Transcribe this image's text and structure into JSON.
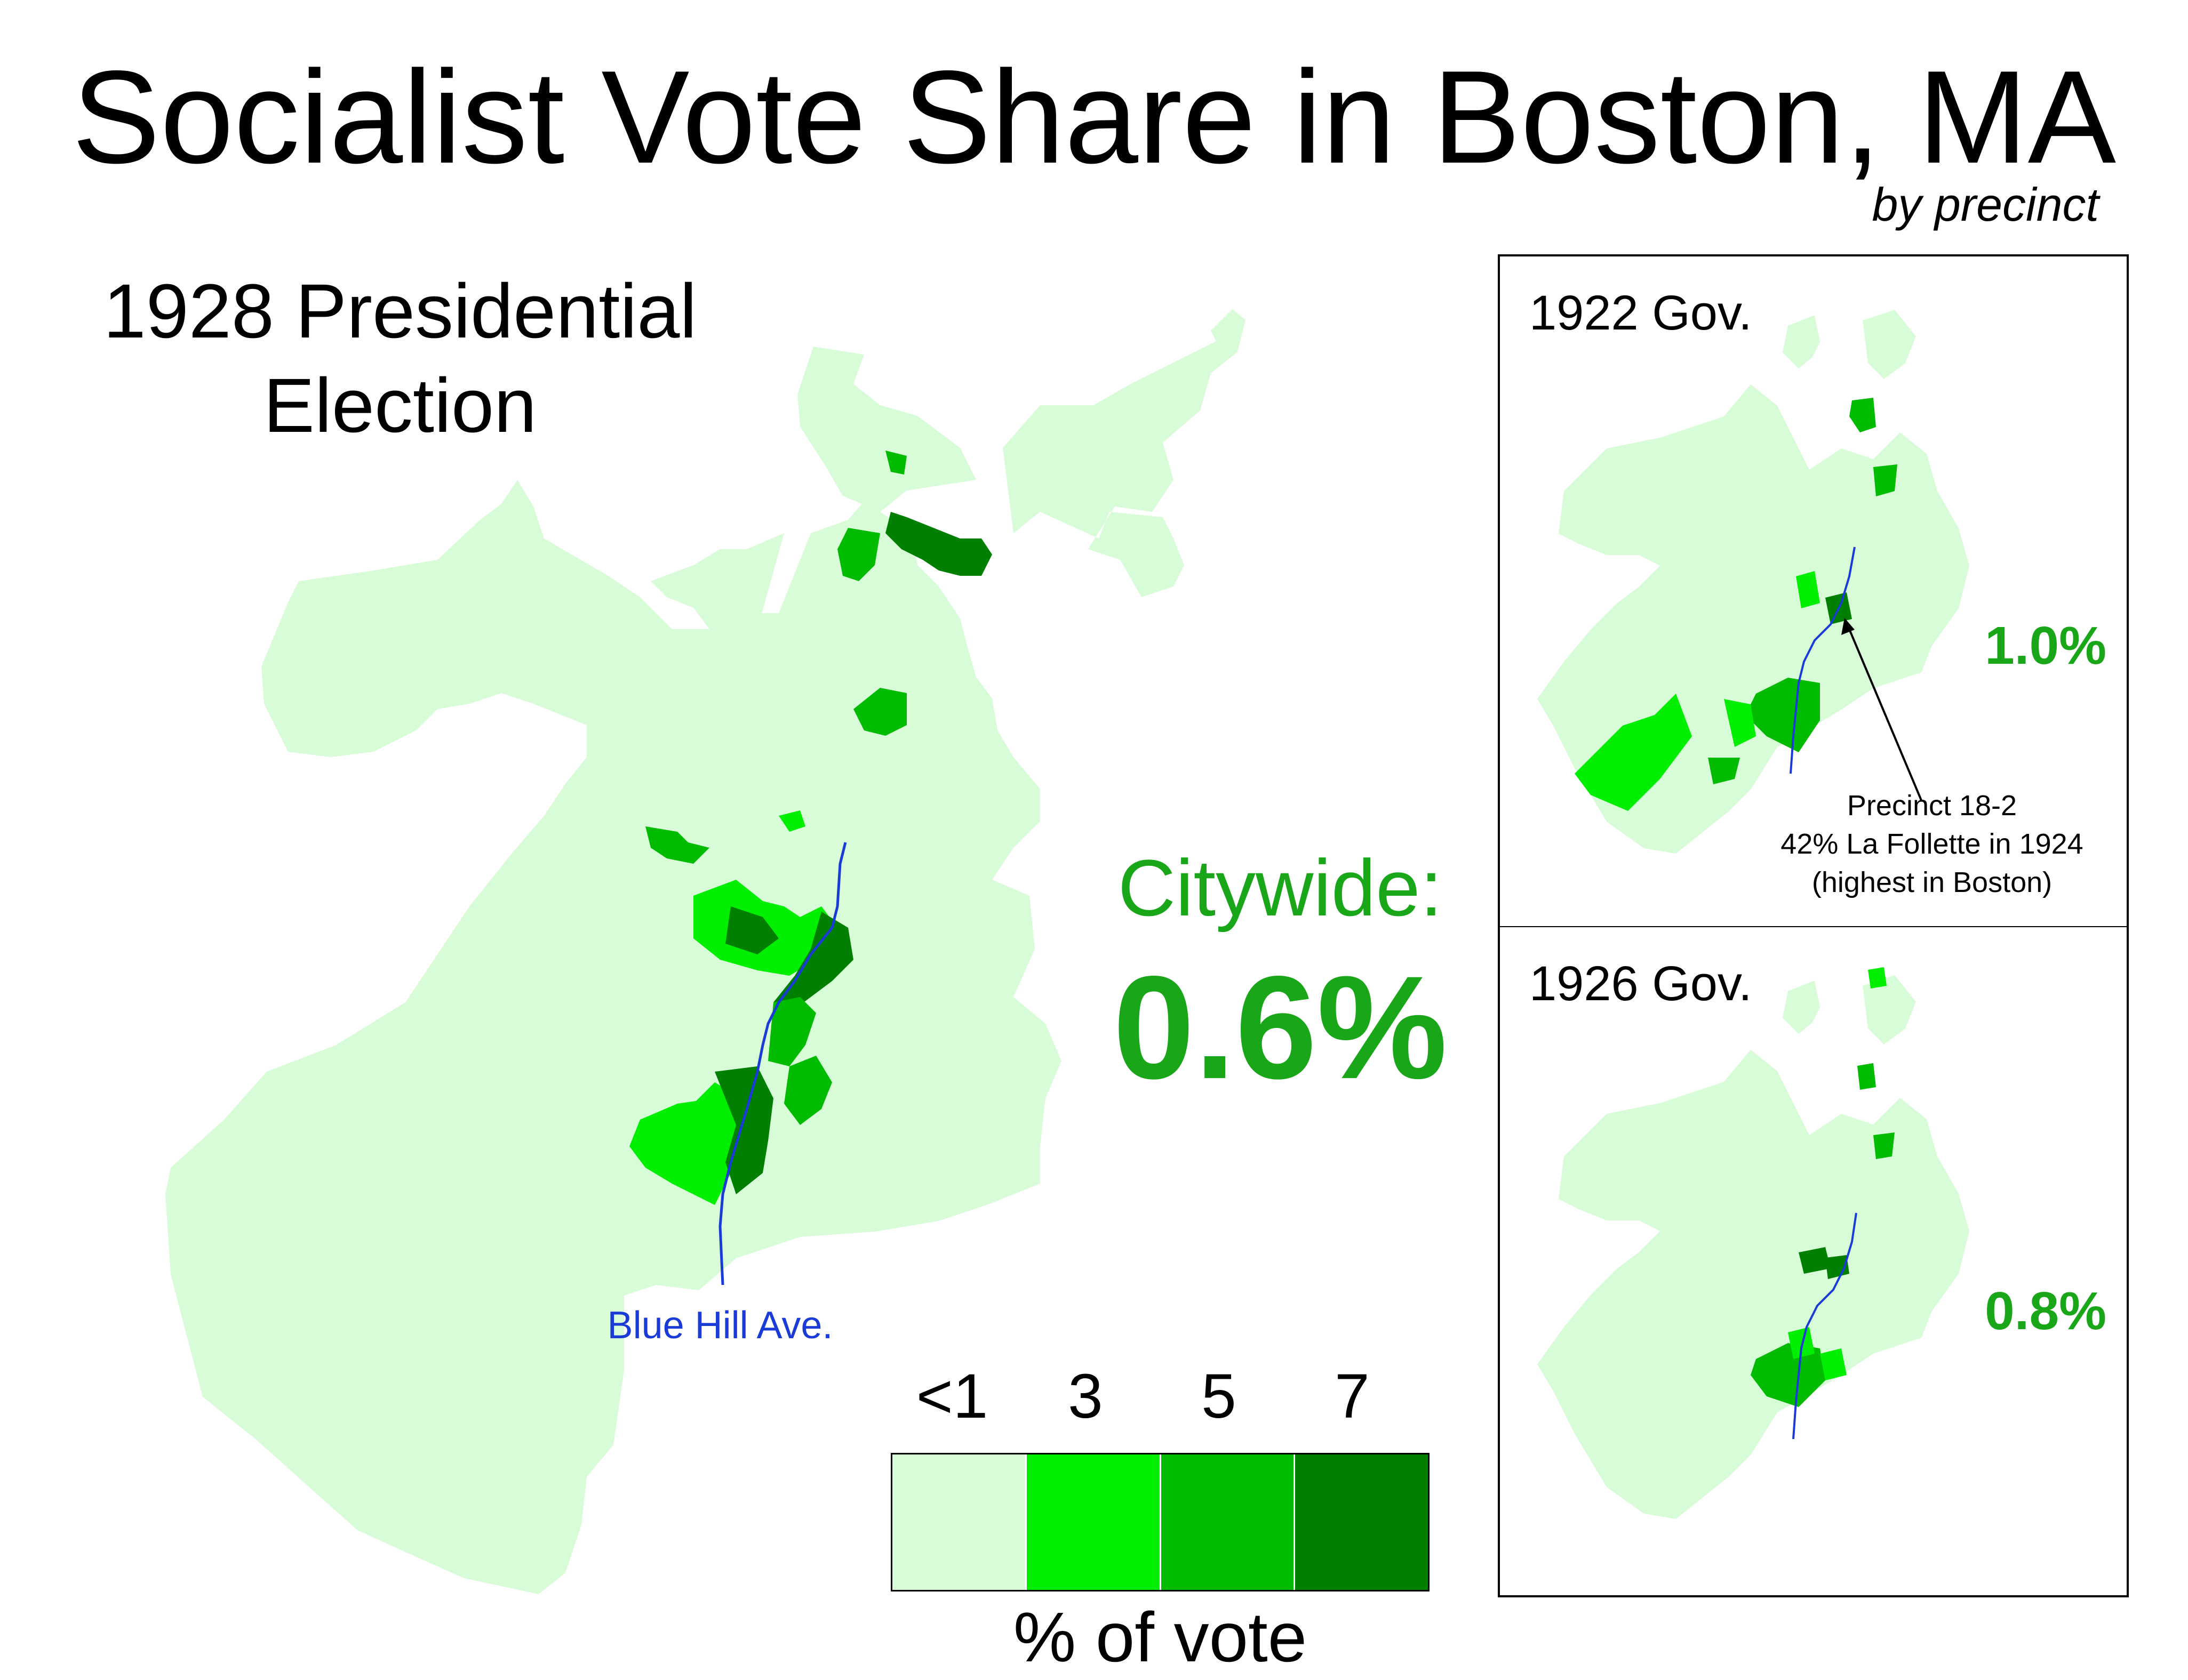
{
  "title": "Socialist Vote Share in Boston, MA",
  "subtitle": "by precinct",
  "main_map": {
    "label_line1": "1928 Presidential",
    "label_line2": "Election",
    "citywide_label": "Citywide:",
    "citywide_value": "0.6%",
    "street_label": "Blue Hill Ave."
  },
  "insets": [
    {
      "label": "1922 Gov.",
      "value": "1.0%",
      "annotation": {
        "line1": "Precinct 18-2",
        "line2": "42% La Follette in 1924",
        "line3": "(highest in Boston)"
      }
    },
    {
      "label": "1926 Gov.",
      "value": "0.8%"
    }
  ],
  "legend": {
    "tick_labels": [
      "<1",
      "3",
      "5",
      "7"
    ],
    "swatch_colors": [
      "#d8fcd8",
      "#00ee00",
      "#00bb00",
      "#007f00"
    ],
    "caption": "% of vote"
  },
  "colors": {
    "accent_green": "#19a619",
    "street_blue": "#1a3bd6",
    "base_fill": "#d8fcd8"
  },
  "icons": {
    "street_line": "blue-hill-avenue-line",
    "annotation_pointer": "arrow-icon"
  }
}
